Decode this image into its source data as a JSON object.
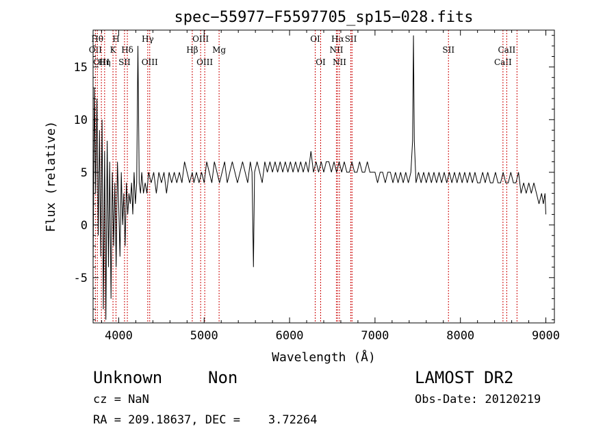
{
  "chart_data": {
    "type": "line",
    "title": "spec−55977−F5597705_sp15−028.fits",
    "xlabel": "Wavelength (Å)",
    "ylabel": "Flux (relative)",
    "xlim": [
      3700,
      9100
    ],
    "ylim": [
      -9.3,
      18.5
    ],
    "xticks": [
      4000,
      5000,
      6000,
      7000,
      8000,
      9000
    ],
    "yticks": [
      -5,
      0,
      5,
      10,
      15
    ],
    "line_color": "#000000",
    "marker_color": "#cc0000",
    "series": [
      {
        "x": [
          3700,
          3715,
          3730,
          3745,
          3760,
          3775,
          3790,
          3805,
          3820,
          3835,
          3850,
          3865,
          3880,
          3895,
          3910,
          3925,
          3940,
          3955,
          3970,
          3985,
          4000,
          4015,
          4030,
          4045,
          4060,
          4075,
          4090,
          4105,
          4120,
          4135,
          4150,
          4165,
          4180,
          4195,
          4210,
          4225,
          4240,
          4255,
          4270,
          4290,
          4310,
          4330,
          4350,
          4380,
          4410,
          4440,
          4470,
          4500,
          4530,
          4560,
          4590,
          4620,
          4650,
          4680,
          4710,
          4740,
          4770,
          4800,
          4830,
          4861,
          4880,
          4910,
          4940,
          4970,
          5000,
          5030,
          5060,
          5090,
          5120,
          5150,
          5180,
          5210,
          5240,
          5270,
          5300,
          5330,
          5360,
          5390,
          5420,
          5450,
          5480,
          5510,
          5540,
          5560,
          5577,
          5590,
          5620,
          5650,
          5680,
          5710,
          5740,
          5770,
          5800,
          5830,
          5860,
          5890,
          5920,
          5950,
          5980,
          6010,
          6040,
          6070,
          6100,
          6130,
          6160,
          6190,
          6220,
          6250,
          6280,
          6310,
          6340,
          6370,
          6400,
          6430,
          6460,
          6490,
          6520,
          6550,
          6580,
          6610,
          6640,
          6670,
          6700,
          6730,
          6760,
          6790,
          6820,
          6850,
          6880,
          6910,
          6940,
          6970,
          7000,
          7030,
          7060,
          7090,
          7120,
          7150,
          7180,
          7210,
          7240,
          7270,
          7300,
          7330,
          7360,
          7390,
          7420,
          7440,
          7450,
          7460,
          7480,
          7510,
          7540,
          7570,
          7600,
          7630,
          7660,
          7690,
          7720,
          7750,
          7780,
          7810,
          7840,
          7870,
          7900,
          7930,
          7960,
          7990,
          8020,
          8050,
          8080,
          8110,
          8140,
          8170,
          8200,
          8230,
          8260,
          8290,
          8320,
          8350,
          8380,
          8410,
          8440,
          8470,
          8500,
          8530,
          8560,
          8590,
          8620,
          8650,
          8680,
          8710,
          8740,
          8770,
          8800,
          8830,
          8860,
          8890,
          8920,
          8950,
          8970,
          8990,
          9000
        ],
        "y": [
          -4,
          13,
          3,
          12,
          -1,
          9,
          -3,
          10,
          -8,
          7,
          -9,
          8,
          -4,
          6,
          -7,
          5,
          -2,
          4,
          -4,
          6,
          2,
          -3,
          5,
          0,
          3,
          -2,
          4,
          1,
          3,
          2,
          4,
          1,
          5,
          2,
          4,
          17,
          4,
          3,
          5,
          3,
          4,
          3,
          5,
          4,
          5,
          3,
          5,
          4,
          5,
          3,
          5,
          4,
          5,
          4,
          5,
          4,
          6,
          5,
          4,
          5,
          4,
          5,
          4,
          5,
          4,
          6,
          5,
          4,
          6,
          5,
          4,
          5,
          6,
          4,
          5,
          6,
          5,
          4,
          5,
          6,
          5,
          4,
          6,
          5,
          -4,
          5,
          6,
          5,
          4,
          6,
          5,
          6,
          5,
          6,
          5,
          6,
          5,
          6,
          5,
          6,
          5,
          6,
          5,
          6,
          5,
          6,
          5,
          7,
          5,
          6,
          5,
          6,
          5,
          6,
          6,
          5,
          6,
          5,
          6,
          5,
          6,
          5,
          5,
          6,
          5,
          5,
          6,
          5,
          5,
          6,
          5,
          5,
          5,
          4,
          5,
          5,
          4,
          5,
          5,
          4,
          5,
          4,
          5,
          4,
          5,
          4,
          5,
          8,
          18,
          8,
          4,
          5,
          4,
          5,
          4,
          5,
          4,
          5,
          4,
          5,
          4,
          5,
          4,
          5,
          4,
          5,
          4,
          5,
          4,
          5,
          4,
          5,
          4,
          5,
          4,
          4,
          5,
          4,
          5,
          4,
          4,
          5,
          4,
          4,
          5,
          4,
          4,
          5,
          4,
          4,
          5,
          3,
          4,
          3,
          4,
          3,
          4,
          3,
          2,
          3,
          2,
          3,
          1
        ]
      }
    ],
    "line_markers": [
      {
        "wl": 3727,
        "row": 2,
        "label": "OII"
      },
      {
        "wl": 3750,
        "row": 1,
        "label": "Hθ"
      },
      {
        "wl": 3797,
        "row": 3,
        "label": "OIII"
      },
      {
        "wl": 3835,
        "row": 3,
        "label": "Hη"
      },
      {
        "wl": 3933,
        "row": 2,
        "label": "K"
      },
      {
        "wl": 3968,
        "row": 1,
        "label": "H"
      },
      {
        "wl": 4068,
        "row": 3,
        "label": "SII"
      },
      {
        "wl": 4101,
        "row": 2,
        "label": "Hδ"
      },
      {
        "wl": 4340,
        "row": 1,
        "label": "Hγ"
      },
      {
        "wl": 4363,
        "row": 3,
        "label": "OIII"
      },
      {
        "wl": 4861,
        "row": 2,
        "label": "Hβ"
      },
      {
        "wl": 4959,
        "row": 1,
        "label": "OIII"
      },
      {
        "wl": 5007,
        "row": 3,
        "label": "OIII"
      },
      {
        "wl": 5175,
        "row": 2,
        "label": "Mg"
      },
      {
        "wl": 6300,
        "row": 1,
        "label": "OI"
      },
      {
        "wl": 6364,
        "row": 3,
        "label": "OI"
      },
      {
        "wl": 6548,
        "row": 2,
        "label": "NII"
      },
      {
        "wl": 6563,
        "row": 1,
        "label": "Hα"
      },
      {
        "wl": 6584,
        "row": 3,
        "label": "NII"
      },
      {
        "wl": 6717,
        "row": 1,
        "label": "SII"
      },
      {
        "wl": 6731,
        "row": 1,
        "label": ""
      },
      {
        "wl": 7860,
        "row": 2,
        "label": "SII"
      },
      {
        "wl": 8498,
        "row": 3,
        "label": "CaII"
      },
      {
        "wl": 8542,
        "row": 2,
        "label": "CaII"
      },
      {
        "wl": 8662,
        "row": 0,
        "label": ""
      }
    ]
  },
  "info": {
    "object_class": "Unknown",
    "subclass": "Non",
    "survey": "LAMOST DR2",
    "cz": "cz = NaN",
    "obs_date": "Obs-Date: 20120219",
    "coords": "RA = 209.18637, DEC =    3.72264"
  }
}
